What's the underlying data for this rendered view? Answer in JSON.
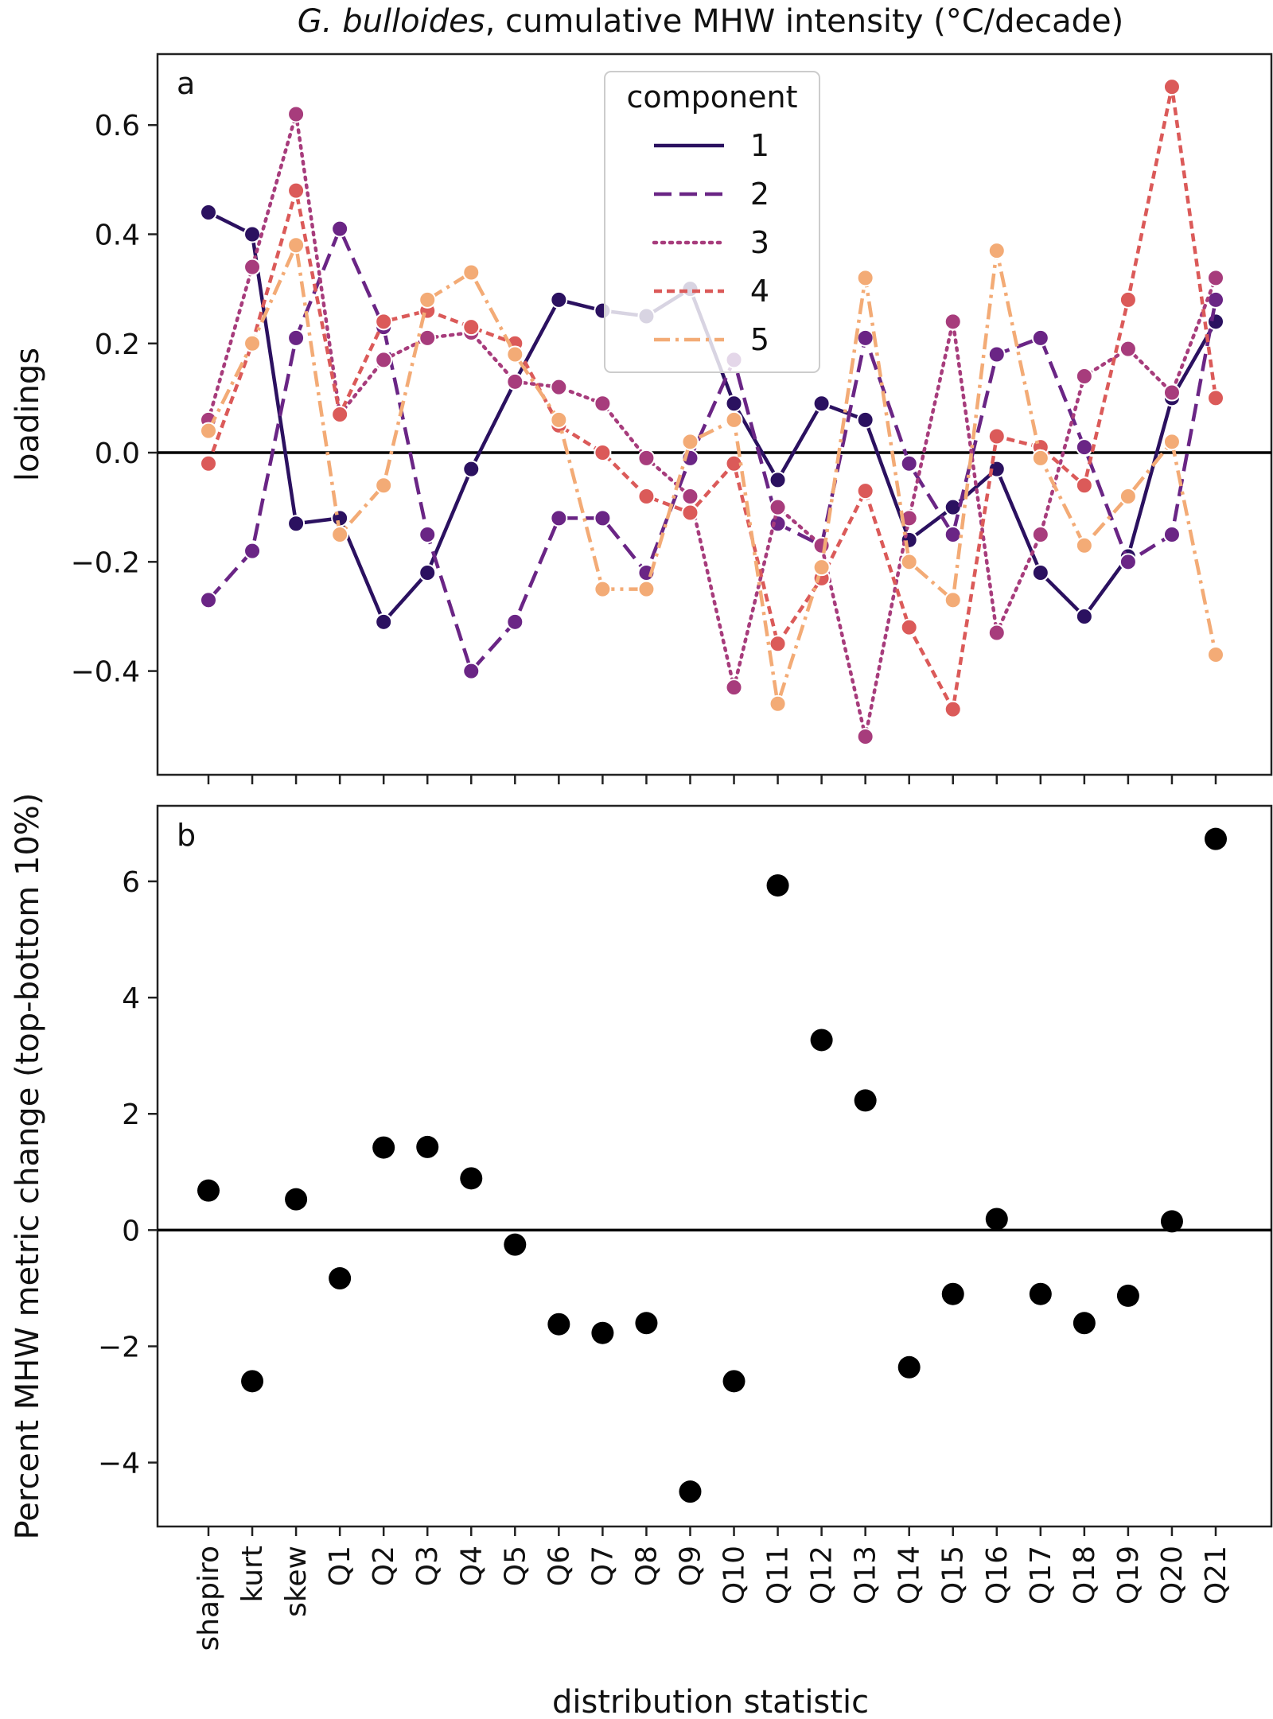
{
  "chart_data": {
    "title": {
      "italic": "G. bulloides",
      "rest": ", cumulative MHW intensity (°C/decade)"
    },
    "categories": [
      "shapiro",
      "kurt",
      "skew",
      "Q1",
      "Q2",
      "Q3",
      "Q4",
      "Q5",
      "Q6",
      "Q7",
      "Q8",
      "Q9",
      "Q10",
      "Q11",
      "Q12",
      "Q13",
      "Q14",
      "Q15",
      "Q16",
      "Q17",
      "Q18",
      "Q19",
      "Q20",
      "Q21"
    ],
    "xlabel": "distribution statistic",
    "panels": [
      {
        "id": "a",
        "type": "line",
        "ylabel": "loadings",
        "ylim": [
          -0.59,
          0.73
        ],
        "yticks": [
          -0.4,
          -0.2,
          0.0,
          0.2,
          0.4,
          0.6
        ],
        "ytick_labels": [
          "−0.4",
          "−0.2",
          "0.0",
          "0.2",
          "0.4",
          "0.6"
        ],
        "hline": 0,
        "legend": {
          "title": "component",
          "location": "top-center"
        },
        "series": [
          {
            "name": "1",
            "color": "#2b1160",
            "dash": "solid",
            "values": [
              0.44,
              0.4,
              -0.13,
              -0.12,
              -0.31,
              -0.22,
              -0.03,
              0.13,
              0.28,
              0.26,
              0.25,
              0.3,
              0.09,
              -0.05,
              0.09,
              0.06,
              -0.16,
              -0.1,
              -0.03,
              -0.22,
              -0.3,
              -0.19,
              0.1,
              0.24
            ]
          },
          {
            "name": "2",
            "color": "#6a2585",
            "dash": "dashed",
            "values": [
              -0.27,
              -0.18,
              0.21,
              0.41,
              0.23,
              -0.15,
              -0.4,
              -0.31,
              -0.12,
              -0.12,
              -0.22,
              -0.01,
              0.17,
              -0.13,
              -0.17,
              0.21,
              -0.02,
              -0.15,
              0.18,
              0.21,
              0.01,
              -0.2,
              -0.15,
              0.28
            ]
          },
          {
            "name": "3",
            "color": "#a73c7c",
            "dash": "dotted",
            "values": [
              0.06,
              0.34,
              0.62,
              0.07,
              0.17,
              0.21,
              0.22,
              0.13,
              0.12,
              0.09,
              -0.01,
              -0.08,
              -0.43,
              -0.1,
              -0.17,
              -0.52,
              -0.12,
              0.24,
              -0.33,
              -0.15,
              0.14,
              0.19,
              0.11,
              0.32
            ]
          },
          {
            "name": "4",
            "color": "#db5a59",
            "dash": "dashdense",
            "values": [
              -0.02,
              0.2,
              0.48,
              0.07,
              0.24,
              0.26,
              0.23,
              0.2,
              0.05,
              0.0,
              -0.08,
              -0.11,
              -0.02,
              -0.35,
              -0.23,
              -0.07,
              -0.32,
              -0.47,
              0.03,
              0.01,
              -0.06,
              0.28,
              0.67,
              0.1
            ]
          },
          {
            "name": "5",
            "color": "#f3ab76",
            "dash": "dashdot",
            "values": [
              0.04,
              0.2,
              0.38,
              -0.15,
              -0.06,
              0.28,
              0.33,
              0.18,
              0.06,
              -0.25,
              -0.25,
              0.02,
              0.06,
              -0.46,
              -0.21,
              0.32,
              -0.2,
              -0.27,
              0.37,
              -0.01,
              -0.17,
              -0.08,
              0.02,
              -0.37
            ]
          }
        ]
      },
      {
        "id": "b",
        "type": "scatter",
        "ylabel": "Percent MHW metric change (top-bottom 10%)",
        "ylim": [
          -5.1,
          7.3
        ],
        "yticks": [
          -4,
          -2,
          0,
          2,
          4,
          6
        ],
        "ytick_labels": [
          "−4",
          "−2",
          "0",
          "2",
          "4",
          "6"
        ],
        "hline": 0,
        "color": "#000000",
        "values": [
          0.68,
          -2.6,
          0.53,
          -0.83,
          1.42,
          1.43,
          0.89,
          -0.25,
          -1.62,
          -1.77,
          -1.6,
          -4.5,
          -2.6,
          5.93,
          3.27,
          2.23,
          -2.36,
          -1.1,
          0.19,
          -1.1,
          -1.6,
          -1.13,
          0.15,
          6.73
        ]
      }
    ]
  }
}
